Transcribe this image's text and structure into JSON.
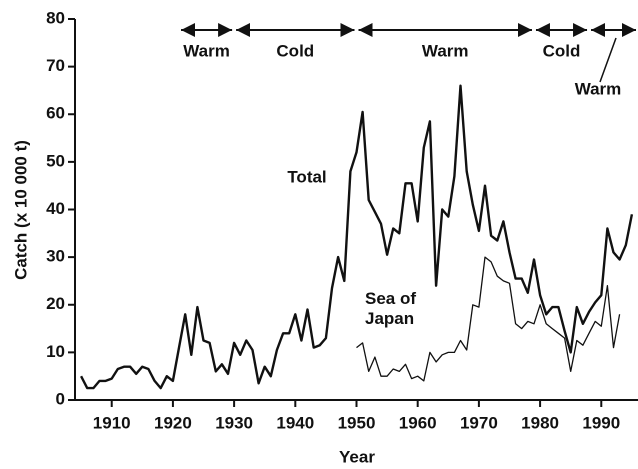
{
  "chart_data": {
    "type": "line",
    "y_label": "Catch (x 10 000 t)",
    "x_label": "Year",
    "x": [
      1905,
      1906,
      1907,
      1908,
      1909,
      1910,
      1911,
      1912,
      1913,
      1914,
      1915,
      1916,
      1917,
      1918,
      1919,
      1920,
      1921,
      1922,
      1923,
      1924,
      1925,
      1926,
      1927,
      1928,
      1929,
      1930,
      1931,
      1932,
      1933,
      1934,
      1935,
      1936,
      1937,
      1938,
      1939,
      1940,
      1941,
      1942,
      1943,
      1944,
      1945,
      1946,
      1947,
      1948,
      1949,
      1950,
      1951,
      1952,
      1953,
      1954,
      1955,
      1956,
      1957,
      1958,
      1959,
      1960,
      1961,
      1962,
      1963,
      1964,
      1965,
      1966,
      1967,
      1968,
      1969,
      1970,
      1971,
      1972,
      1973,
      1974,
      1975,
      1976,
      1977,
      1978,
      1979,
      1980,
      1981,
      1982,
      1983,
      1984,
      1985,
      1986,
      1987,
      1988,
      1989,
      1990,
      1991,
      1992,
      1993,
      1994,
      1995
    ],
    "series": [
      {
        "name": "Total",
        "color": "#111111",
        "values": [
          5,
          2.5,
          2.5,
          4,
          4,
          4.5,
          6.5,
          7,
          7,
          5.5,
          7,
          6.5,
          4,
          2.5,
          5,
          4,
          11,
          18,
          9.5,
          19.5,
          12.5,
          12,
          6,
          7.5,
          5.5,
          12,
          9.5,
          12.5,
          10.5,
          3.5,
          7,
          5,
          10.5,
          14,
          14,
          18,
          12.5,
          19,
          11,
          11.5,
          13,
          23.5,
          30,
          25,
          48,
          52,
          60.5,
          42,
          39.5,
          37,
          30.5,
          36,
          35,
          45.5,
          45.5,
          37.5,
          53,
          58.5,
          24,
          40,
          38.5,
          47,
          66,
          48,
          41,
          35.5,
          45,
          34.5,
          33.5,
          37.5,
          31,
          25.5,
          25.5,
          22.5,
          29.5,
          22,
          18,
          19.5,
          19.5,
          14.5,
          10,
          19.5,
          16,
          18.5,
          20.5,
          22,
          36,
          31,
          29.5,
          32.5,
          39
        ]
      },
      {
        "name": "Sea of Japan",
        "color": "#111111",
        "values": [
          null,
          null,
          null,
          null,
          null,
          null,
          null,
          null,
          null,
          null,
          null,
          null,
          null,
          null,
          null,
          null,
          null,
          null,
          null,
          null,
          null,
          null,
          null,
          null,
          null,
          null,
          null,
          null,
          null,
          null,
          null,
          null,
          null,
          null,
          null,
          null,
          null,
          null,
          null,
          null,
          null,
          null,
          null,
          null,
          null,
          11,
          12,
          6,
          9,
          5,
          5,
          6.5,
          6,
          7.5,
          4.5,
          5,
          4,
          10,
          8,
          9.5,
          10,
          10,
          12.5,
          10.5,
          20,
          19.5,
          30,
          29,
          26,
          25,
          24.5,
          16,
          15,
          16.5,
          16,
          20,
          16,
          15,
          14,
          13,
          6,
          12.5,
          11.5,
          14,
          16.5,
          15.5,
          24,
          11,
          18,
          null,
          null
        ]
      }
    ],
    "periods": [
      {
        "label": "Warm",
        "start": 1921,
        "end": 1930
      },
      {
        "label": "Cold",
        "start": 1930,
        "end": 1950
      },
      {
        "label": "Warm",
        "start": 1950,
        "end": 1979
      },
      {
        "label": "Cold",
        "start": 1979,
        "end": 1988
      },
      {
        "label": "Warm",
        "start": 1988,
        "end": 1996
      }
    ],
    "xlim": [
      1904,
      1996
    ],
    "ylim": [
      0,
      80
    ],
    "xticks": [
      1910,
      1920,
      1930,
      1940,
      1950,
      1960,
      1970,
      1980,
      1990
    ],
    "yticks": [
      0,
      10,
      20,
      30,
      40,
      50,
      60,
      70,
      80
    ]
  }
}
